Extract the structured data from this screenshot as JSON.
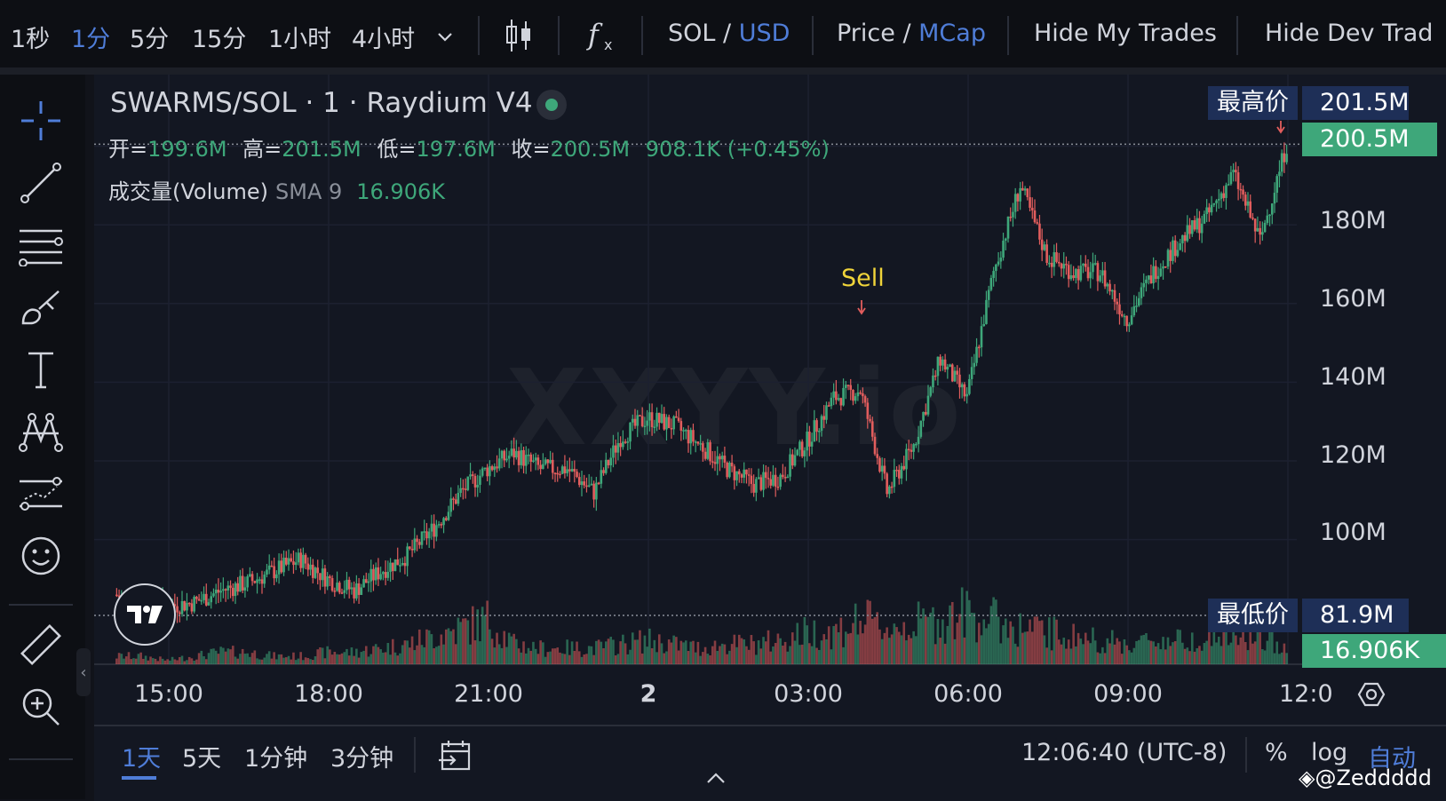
{
  "toolbar": {
    "timeframes": [
      "1秒",
      "1分",
      "5分",
      "15分",
      "1小时",
      "4小时"
    ],
    "active_timeframe_index": 1,
    "pair_base": "SOL / ",
    "pair_quote": "USD",
    "price_label": "Price / ",
    "mcap_label": "MCap",
    "hide_my_trades": "Hide My Trades",
    "hide_dev_trades": "Hide Dev Trad"
  },
  "legend": {
    "title": "SWARMS/SOL · 1 · Raydium V4",
    "open_label": "开=",
    "open": "199.6M",
    "high_label": "高=",
    "high": "201.5M",
    "low_label": "低=",
    "low": "197.6M",
    "close_label": "收=",
    "close": "200.5M",
    "change": "908.1K (+0.45%)",
    "volume_label": "成交量(Volume)",
    "sma_label": "SMA 9",
    "volume_value": "16.906K"
  },
  "price_axis": {
    "high_label": "最高价",
    "high_value": "201.5M",
    "current_value": "200.5M",
    "low_label": "最低价",
    "low_value": "81.9M",
    "volume_value": "16.906K"
  },
  "watermark": "XXYY.io",
  "annotation": "Sell",
  "bottom": {
    "ranges": [
      "1天",
      "5天",
      "1分钟",
      "3分钟"
    ],
    "active_range_index": 0,
    "time": "12:06:40 (UTC-8)",
    "percent": "%",
    "log": "log",
    "auto": "自动"
  },
  "credit": "@Zeddddd",
  "colors": {
    "up": "#3ea77a",
    "down": "#e25d5d",
    "accent": "#4f7dd8",
    "background": "#131722"
  },
  "chart_data": {
    "type": "candlestick",
    "xlabel": "",
    "ylabel": "",
    "ylim": [
      80,
      205
    ],
    "y_ticks": [
      "100M",
      "120M",
      "140M",
      "160M",
      "180M"
    ],
    "x_ticks": [
      "15:00",
      "18:00",
      "21:00",
      "2",
      "03:00",
      "06:00",
      "09:00",
      "12:0"
    ],
    "series": [
      {
        "x": [
          "14:00",
          "14:30",
          "15:00",
          "15:30",
          "16:00",
          "16:30",
          "17:00",
          "17:30",
          "18:00",
          "18:30",
          "19:00",
          "19:30",
          "20:00",
          "20:30",
          "21:00",
          "21:30",
          "22:00",
          "22:30",
          "23:00",
          "23:30",
          "00:00",
          "00:30",
          "01:00",
          "01:30",
          "02:00",
          "02:30",
          "03:00",
          "03:30",
          "04:00",
          "04:30",
          "05:00",
          "05:30",
          "06:00",
          "06:30",
          "07:00",
          "07:30",
          "08:00",
          "08:30",
          "09:00",
          "09:30",
          "10:00",
          "10:30",
          "11:00",
          "11:30",
          "12:00"
        ],
        "values": [
          86,
          84,
          83,
          84,
          87,
          89,
          92,
          95,
          90,
          87,
          92,
          96,
          103,
          112,
          118,
          122,
          118,
          118,
          112,
          126,
          131,
          129,
          124,
          118,
          114,
          116,
          125,
          136,
          138,
          112,
          124,
          146,
          136,
          168,
          190,
          172,
          168,
          168,
          156,
          168,
          176,
          182,
          193,
          176,
          200.5
        ]
      }
    ],
    "volume": [
      2,
      2,
      1,
      2,
      3,
      3,
      2,
      2,
      3,
      3,
      4,
      5,
      7,
      9,
      11,
      5,
      4,
      4,
      4,
      5,
      6,
      5,
      4,
      5,
      5,
      6,
      8,
      8,
      11,
      9,
      10,
      11,
      13,
      11,
      9,
      8,
      7,
      6,
      5,
      6,
      6,
      7,
      7,
      6,
      5
    ]
  }
}
